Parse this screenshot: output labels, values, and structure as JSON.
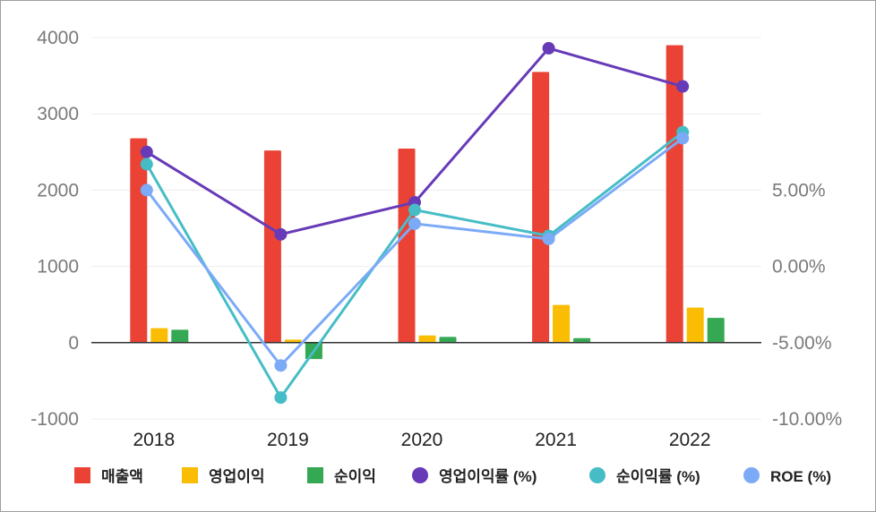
{
  "chart_data": {
    "type": "bar",
    "categories": [
      "2018",
      "2019",
      "2020",
      "2021",
      "2022"
    ],
    "series": [
      {
        "name": "매출액",
        "kind": "bar",
        "axis": "left",
        "color": "#ea4335",
        "values": [
          2680,
          2520,
          2545,
          3550,
          3900
        ]
      },
      {
        "name": "영업이익",
        "kind": "bar",
        "axis": "left",
        "color": "#fbbc04",
        "values": [
          190,
          40,
          95,
          495,
          460
        ]
      },
      {
        "name": "순이익",
        "kind": "bar",
        "axis": "left",
        "color": "#34a853",
        "values": [
          170,
          -215,
          75,
          60,
          325
        ]
      },
      {
        "name": "영업이익률 (%)",
        "kind": "line",
        "axis": "right",
        "color": "#673ab7",
        "values": [
          7.5,
          2.1,
          4.2,
          14.3,
          11.8
        ]
      },
      {
        "name": "순이익률 (%)",
        "kind": "line",
        "axis": "right",
        "color": "#46bdc6",
        "values": [
          6.7,
          -8.6,
          3.7,
          2.0,
          8.8
        ]
      },
      {
        "name": "ROE (%)",
        "kind": "line",
        "axis": "right",
        "color": "#7baaf7",
        "values": [
          5.0,
          -6.5,
          2.8,
          1.8,
          8.4
        ]
      }
    ],
    "left_axis": {
      "ylim": [
        -1000,
        4000
      ],
      "ticks": [
        "4000",
        "3000",
        "2000",
        "1000",
        "0",
        "-1000"
      ]
    },
    "right_axis": {
      "ylim": [
        -10,
        15
      ],
      "ticks": [
        "5.00%",
        "0.00%",
        "-5.00%",
        "-10.00%"
      ]
    },
    "grid": true,
    "legend_position": "bottom"
  }
}
